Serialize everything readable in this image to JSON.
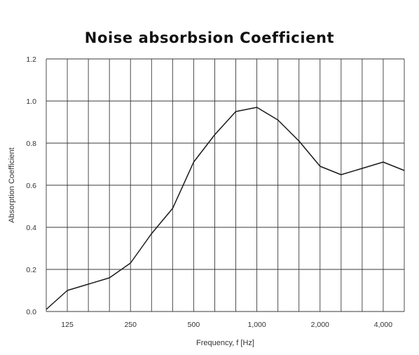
{
  "chart_data": {
    "type": "line",
    "title": "Noise absorbsion Coefficient",
    "xlabel": "Frequency, f [Hz]",
    "ylabel": "Absorption Coefficient",
    "ylim": [
      0,
      1.2
    ],
    "y_ticks": [
      "0.0",
      "0.2",
      "0.4",
      "0.6",
      "0.8",
      "1.0",
      "1.2"
    ],
    "x_tick_labels": [
      "125",
      "250",
      "500",
      "1,000",
      "2,000",
      "4,000"
    ],
    "grid": true,
    "series": [
      {
        "x": [
          100,
          125,
          160,
          200,
          250,
          315,
          400,
          500,
          630,
          800,
          1000,
          1250,
          1600,
          2000,
          2500,
          3150,
          4000,
          5000
        ],
        "values": [
          0.01,
          0.1,
          0.13,
          0.16,
          0.23,
          0.37,
          0.49,
          0.71,
          0.84,
          0.95,
          0.97,
          0.91,
          0.81,
          0.69,
          0.65,
          0.68,
          0.71,
          0.67
        ]
      }
    ]
  }
}
